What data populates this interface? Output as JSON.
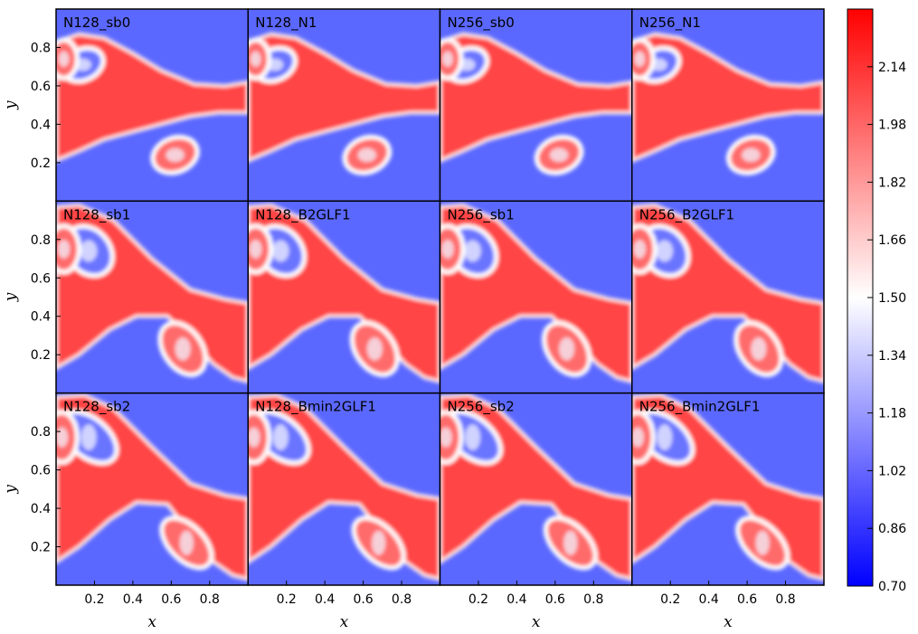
{
  "chart_data": {
    "type": "heatmap",
    "grid": {
      "rows": 3,
      "cols": 4
    },
    "panels": [
      {
        "label": "N128_sb0",
        "stage": 0
      },
      {
        "label": "N128_N1",
        "stage": 0
      },
      {
        "label": "N256_sb0",
        "stage": 0
      },
      {
        "label": "N256_N1",
        "stage": 0
      },
      {
        "label": "N128_sb1",
        "stage": 1
      },
      {
        "label": "N128_B2GLF1",
        "stage": 1
      },
      {
        "label": "N256_sb1",
        "stage": 1
      },
      {
        "label": "N256_B2GLF1",
        "stage": 1
      },
      {
        "label": "N128_sb2",
        "stage": 2
      },
      {
        "label": "N128_Bmin2GLF1",
        "stage": 2
      },
      {
        "label": "N256_sb2",
        "stage": 2
      },
      {
        "label": "N256_Bmin2GLF1",
        "stage": 2
      }
    ],
    "xlabel": "x",
    "ylabel": "y",
    "xlim": [
      0,
      1
    ],
    "ylim": [
      0,
      1
    ],
    "x_ticks": [
      "0.2",
      "0.4",
      "0.6",
      "0.8"
    ],
    "y_ticks": [
      "0.2",
      "0.4",
      "0.6",
      "0.8"
    ],
    "colorbar": {
      "range": [
        0.7,
        2.3
      ],
      "ticks": [
        "0.70",
        "0.86",
        "1.02",
        "1.18",
        "1.34",
        "1.50",
        "1.66",
        "1.82",
        "1.98",
        "2.14"
      ],
      "colors": [
        "#0000ff",
        "#ffffff",
        "#ff0000"
      ]
    }
  }
}
